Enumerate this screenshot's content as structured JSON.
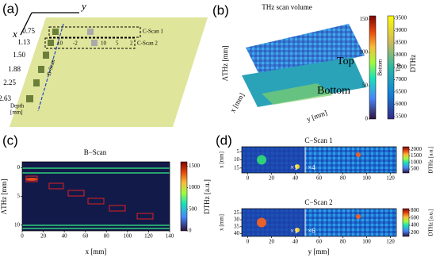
{
  "panel_a": {
    "label": "(a)",
    "axis_y": "y",
    "axis_x": "x",
    "b_scan": "B-Scan",
    "depths": [
      "0.75",
      "1.13",
      "1.50",
      "1.88",
      "2.25",
      "2.63"
    ],
    "depth_label": "Depth",
    "depth_unit": "[mm]",
    "c_scan_1": "C-Scan 1",
    "c_scan_2": "C-Scan 2",
    "marks": [
      "10",
      "-2",
      "10",
      "5",
      "2"
    ]
  },
  "panel_b": {
    "label": "(b)",
    "title": "THz scan volume",
    "z_label": "ΛTHz [mm]",
    "x_label": "x [mm]",
    "y_label": "y [mm]",
    "top": "Top",
    "bottom": "Bottom",
    "colorbars": [
      {
        "label": "Bottom",
        "lim": [
          0,
          155
        ],
        "ticks": [
          0,
          50,
          100,
          150
        ]
      },
      {
        "label": "Top",
        "title": "DTHz",
        "lim": [
          5400,
          9600
        ],
        "ticks": [
          5500,
          6000,
          6500,
          7000,
          7500,
          8000,
          8500,
          9000,
          9500
        ]
      }
    ]
  },
  "panel_c": {
    "label": "(c)",
    "title": "B−Scan",
    "x_label": "x [mm]",
    "y_label": "ΛTHz [mm]",
    "xlim": [
      0,
      140
    ],
    "xticks": [
      0,
      20,
      40,
      60,
      80,
      100,
      120,
      140
    ],
    "ylim": [
      11,
      -1
    ],
    "yticks": [
      0,
      5,
      10
    ],
    "colorbar": {
      "label": "DTHz [a.u.]",
      "lim": [
        0,
        1600
      ],
      "ticks": [
        0,
        500,
        1000,
        1500
      ]
    }
  },
  "panel_d": {
    "label": "(d)",
    "y_label_common": "y [mm]",
    "scans": [
      {
        "title": "C−Scan 1",
        "y_label": "x [mm]",
        "xlim": [
          -5,
          125
        ],
        "xticks": [
          0,
          20,
          40,
          60,
          80,
          100,
          120
        ],
        "ylim": [
          18,
          2
        ],
        "yticks": [
          5,
          10,
          15
        ],
        "zoom_left": "×1",
        "zoom_right": "×4",
        "colorbar": {
          "label": "DTHz [a.u.]",
          "lim": [
            200,
            2200
          ],
          "ticks": [
            500,
            1000,
            1500,
            2000
          ]
        }
      },
      {
        "title": "C−Scan 2",
        "y_label": "x [mm]",
        "xlim": [
          -5,
          125
        ],
        "xticks": [
          0,
          20,
          40,
          60,
          80,
          100,
          120
        ],
        "ylim": [
          42,
          22
        ],
        "yticks": [
          25,
          30,
          35,
          40
        ],
        "zoom_left": "×1",
        "zoom_right": "×6",
        "colorbar": {
          "label": "DTHz [a.u.]",
          "lim": [
            100,
            850
          ],
          "ticks": [
            200,
            400,
            600,
            800
          ]
        }
      }
    ]
  }
}
